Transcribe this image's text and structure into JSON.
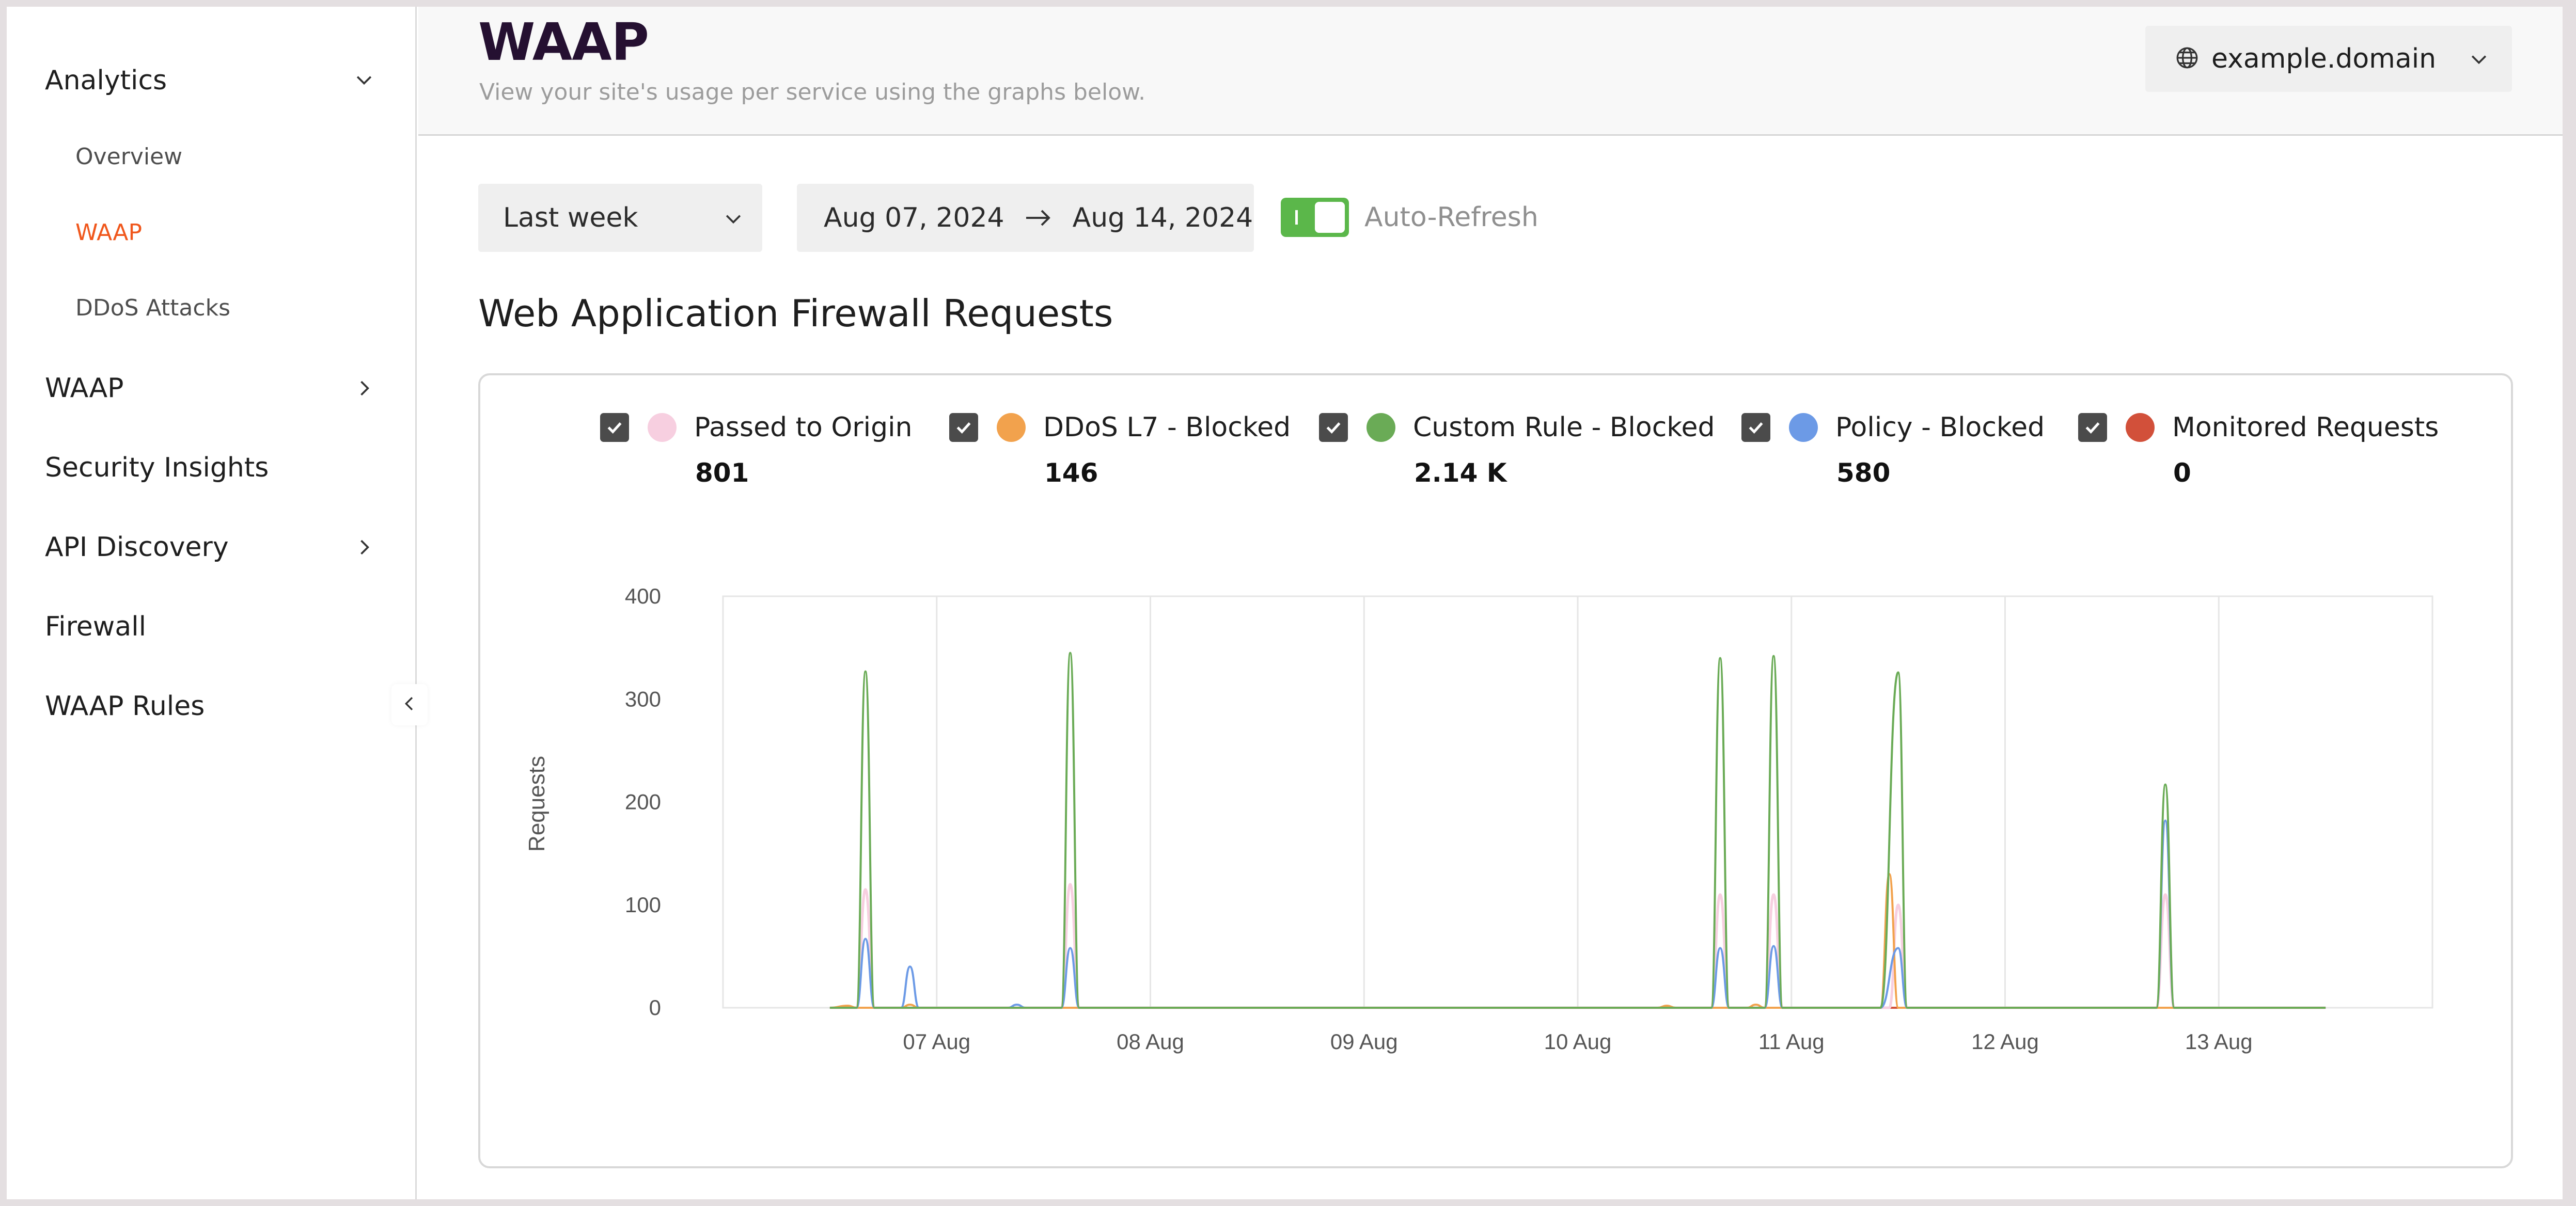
{
  "colors": {
    "accent": "#f0571c",
    "title": "#251031",
    "toggle_on": "#5bb74a",
    "passed": "#f7cfe0",
    "ddos": "#f2a24d",
    "custom_rule": "#6aab56",
    "policy": "#6c9ae6",
    "monitored": "#d2503a"
  },
  "sidebar": {
    "analytics": {
      "label": "Analytics",
      "icon": "chevron-down-icon"
    },
    "overview": {
      "label": "Overview"
    },
    "waap_sub": {
      "label": "WAAP"
    },
    "ddos": {
      "label": "DDoS Attacks"
    },
    "waap": {
      "label": "WAAP",
      "icon": "chevron-right-icon"
    },
    "security_insights": {
      "label": "Security Insights"
    },
    "api_discovery": {
      "label": "API Discovery",
      "icon": "chevron-right-icon"
    },
    "firewall": {
      "label": "Firewall"
    },
    "waap_rules": {
      "label": "WAAP Rules"
    },
    "collapse_icon": "chevron-left-icon"
  },
  "header": {
    "title": "WAAP",
    "subtitle": "View your site's usage per service using the graphs below.",
    "domain": "example.domain",
    "domain_icon": "globe-icon"
  },
  "toolbar": {
    "period": "Last week",
    "date_from": "Aug 07, 2024",
    "date_to": "Aug 14, 2024",
    "auto_refresh_label": "Auto-Refresh",
    "auto_refresh_on": true
  },
  "section": {
    "title": "Web Application Firewall Requests"
  },
  "legend": [
    {
      "name": "Passed to Origin",
      "value": "801",
      "checked": true
    },
    {
      "name": "DDoS L7 - Blocked",
      "value": "146",
      "checked": true
    },
    {
      "name": "Custom Rule - Blocked",
      "value": "2.14 K",
      "checked": true
    },
    {
      "name": "Policy - Blocked",
      "value": "580",
      "checked": true
    },
    {
      "name": "Monitored Requests",
      "value": "0",
      "checked": true
    }
  ],
  "chart_data": {
    "type": "line",
    "ylabel": "Requests",
    "xlabel": "",
    "ylim": [
      0,
      400
    ],
    "yticks": [
      0,
      100,
      200,
      300,
      400
    ],
    "xlim": [
      "2024-08-06 00:00",
      "2024-08-14 00:00"
    ],
    "xticks": [
      "07 Aug",
      "08 Aug",
      "09 Aug",
      "10 Aug",
      "11 Aug",
      "12 Aug",
      "13 Aug"
    ],
    "grid": true,
    "series": [
      {
        "name": "Passed to Origin",
        "points": [
          [
            "2024-08-06 12:00",
            0
          ],
          [
            "2024-08-06 15:00",
            0
          ],
          [
            "2024-08-06 16:00",
            115
          ],
          [
            "2024-08-06 17:00",
            0
          ],
          [
            "2024-08-07 14:00",
            0
          ],
          [
            "2024-08-07 15:00",
            120
          ],
          [
            "2024-08-07 16:00",
            0
          ],
          [
            "2024-08-10 15:00",
            0
          ],
          [
            "2024-08-10 16:00",
            110
          ],
          [
            "2024-08-10 17:00",
            0
          ],
          [
            "2024-08-10 21:00",
            0
          ],
          [
            "2024-08-10 22:00",
            110
          ],
          [
            "2024-08-10 23:00",
            0
          ],
          [
            "2024-08-11 11:00",
            0
          ],
          [
            "2024-08-11 12:00",
            100
          ],
          [
            "2024-08-11 13:00",
            0
          ],
          [
            "2024-08-12 17:00",
            0
          ],
          [
            "2024-08-12 18:00",
            110
          ],
          [
            "2024-08-12 19:00",
            0
          ],
          [
            "2024-08-13 12:00",
            0
          ]
        ]
      },
      {
        "name": "DDoS L7 - Blocked",
        "points": [
          [
            "2024-08-06 12:00",
            0
          ],
          [
            "2024-08-06 14:00",
            2
          ],
          [
            "2024-08-06 15:00",
            0
          ],
          [
            "2024-08-06 20:00",
            0
          ],
          [
            "2024-08-06 21:00",
            3
          ],
          [
            "2024-08-06 22:00",
            0
          ],
          [
            "2024-08-10 09:00",
            0
          ],
          [
            "2024-08-10 10:00",
            2
          ],
          [
            "2024-08-10 11:00",
            0
          ],
          [
            "2024-08-10 19:00",
            0
          ],
          [
            "2024-08-10 20:00",
            3
          ],
          [
            "2024-08-10 21:00",
            0
          ],
          [
            "2024-08-11 10:00",
            0
          ],
          [
            "2024-08-11 11:00",
            130
          ],
          [
            "2024-08-11 12:00",
            0
          ],
          [
            "2024-08-13 12:00",
            0
          ]
        ]
      },
      {
        "name": "Custom Rule - Blocked",
        "points": [
          [
            "2024-08-06 12:00",
            0
          ],
          [
            "2024-08-06 15:00",
            0
          ],
          [
            "2024-08-06 16:00",
            327
          ],
          [
            "2024-08-06 17:00",
            0
          ],
          [
            "2024-08-07 14:00",
            0
          ],
          [
            "2024-08-07 15:00",
            345
          ],
          [
            "2024-08-07 16:00",
            0
          ],
          [
            "2024-08-10 15:00",
            0
          ],
          [
            "2024-08-10 16:00",
            340
          ],
          [
            "2024-08-10 17:00",
            0
          ],
          [
            "2024-08-10 21:00",
            0
          ],
          [
            "2024-08-10 22:00",
            342
          ],
          [
            "2024-08-10 23:00",
            0
          ],
          [
            "2024-08-11 10:00",
            0
          ],
          [
            "2024-08-11 12:00",
            326
          ],
          [
            "2024-08-11 13:00",
            0
          ],
          [
            "2024-08-12 17:00",
            0
          ],
          [
            "2024-08-12 18:00",
            217
          ],
          [
            "2024-08-12 19:00",
            0
          ],
          [
            "2024-08-13 12:00",
            0
          ]
        ]
      },
      {
        "name": "Policy - Blocked",
        "points": [
          [
            "2024-08-06 12:00",
            0
          ],
          [
            "2024-08-06 15:00",
            0
          ],
          [
            "2024-08-06 16:00",
            67
          ],
          [
            "2024-08-06 17:00",
            0
          ],
          [
            "2024-08-06 20:00",
            0
          ],
          [
            "2024-08-06 21:00",
            40
          ],
          [
            "2024-08-06 22:00",
            0
          ],
          [
            "2024-08-07 08:00",
            0
          ],
          [
            "2024-08-07 09:00",
            3
          ],
          [
            "2024-08-07 10:00",
            0
          ],
          [
            "2024-08-07 14:00",
            0
          ],
          [
            "2024-08-07 15:00",
            58
          ],
          [
            "2024-08-07 16:00",
            0
          ],
          [
            "2024-08-10 15:00",
            0
          ],
          [
            "2024-08-10 16:00",
            58
          ],
          [
            "2024-08-10 17:00",
            0
          ],
          [
            "2024-08-10 21:00",
            0
          ],
          [
            "2024-08-10 22:00",
            60
          ],
          [
            "2024-08-10 23:00",
            0
          ],
          [
            "2024-08-11 10:00",
            0
          ],
          [
            "2024-08-11 12:00",
            58
          ],
          [
            "2024-08-11 13:00",
            0
          ],
          [
            "2024-08-12 17:00",
            0
          ],
          [
            "2024-08-12 18:00",
            182
          ],
          [
            "2024-08-12 19:00",
            0
          ],
          [
            "2024-08-13 12:00",
            0
          ]
        ]
      },
      {
        "name": "Monitored Requests",
        "points": [
          [
            "2024-08-06 12:00",
            0
          ],
          [
            "2024-08-13 12:00",
            0
          ]
        ]
      }
    ]
  }
}
